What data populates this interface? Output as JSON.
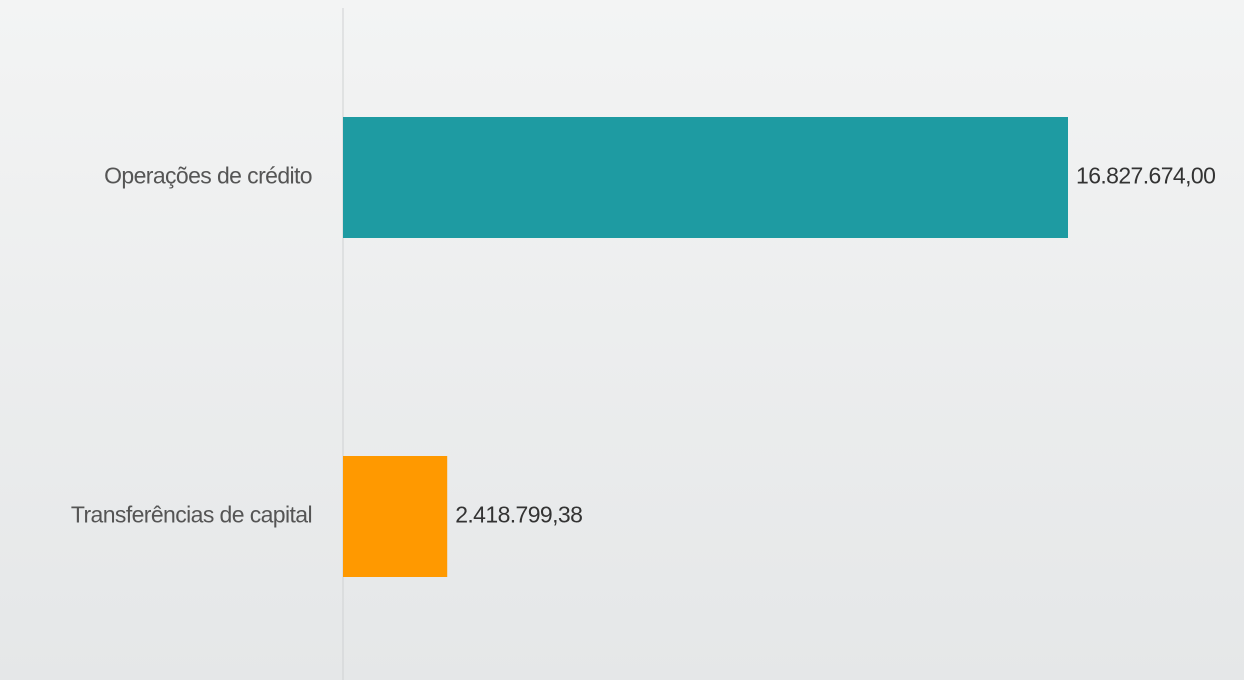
{
  "chart_data": {
    "type": "bar",
    "orientation": "horizontal",
    "categories": [
      "Operações de crédito",
      "Transferências de capital"
    ],
    "values": [
      16827674.0,
      2418799.38
    ],
    "value_labels": [
      "16.827.674,00",
      "2.418.799,38"
    ],
    "colors": [
      "#1e9ba2",
      "#ff9900"
    ]
  }
}
